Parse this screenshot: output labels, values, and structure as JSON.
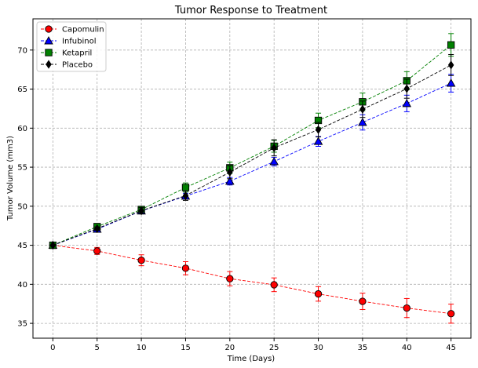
{
  "chart_data": {
    "type": "line",
    "title": "Tumor Response to Treatment",
    "xlabel": "Time (Days)",
    "ylabel": "Tumor Volume (mm3)",
    "x": [
      0,
      5,
      10,
      15,
      20,
      25,
      30,
      35,
      40,
      45
    ],
    "xlim": [
      -2.25,
      47.25
    ],
    "ylim": [
      33.1,
      74.0
    ],
    "xticks": [
      0,
      5,
      10,
      15,
      20,
      25,
      30,
      35,
      40,
      45
    ],
    "yticks": [
      35,
      40,
      45,
      50,
      55,
      60,
      65,
      70
    ],
    "grid": true,
    "legend_position": "top-left",
    "series": [
      {
        "name": "Capomulin",
        "color": "#ff0000",
        "marker": "circle",
        "values": [
          45.0,
          44.27,
          43.08,
          42.06,
          40.72,
          39.94,
          38.77,
          37.82,
          36.96,
          36.24
        ],
        "errors": [
          0.0,
          0.45,
          0.7,
          0.84,
          0.91,
          0.88,
          0.93,
          1.05,
          1.22,
          1.22
        ]
      },
      {
        "name": "Infubinol",
        "color": "#0000ff",
        "marker": "triangle",
        "values": [
          45.0,
          47.06,
          49.4,
          51.3,
          53.2,
          55.72,
          58.3,
          60.74,
          63.16,
          65.76
        ],
        "errors": [
          0.0,
          0.24,
          0.28,
          0.36,
          0.48,
          0.55,
          0.63,
          0.98,
          1.06,
          1.14
        ]
      },
      {
        "name": "Ketapril",
        "color": "#008000",
        "marker": "square",
        "values": [
          45.0,
          47.39,
          49.58,
          52.4,
          54.92,
          57.68,
          60.99,
          63.37,
          66.07,
          70.66
        ],
        "errors": [
          0.0,
          0.26,
          0.36,
          0.58,
          0.73,
          0.76,
          0.93,
          1.13,
          1.16,
          1.45
        ]
      },
      {
        "name": "Placebo",
        "color": "#000000",
        "marker": "diamond",
        "values": [
          45.0,
          47.13,
          49.42,
          51.36,
          54.36,
          57.48,
          59.81,
          62.42,
          65.05,
          68.08
        ],
        "errors": [
          0.0,
          0.22,
          0.4,
          0.61,
          0.84,
          1.03,
          0.93,
          1.05,
          1.22,
          1.35
        ]
      }
    ]
  }
}
